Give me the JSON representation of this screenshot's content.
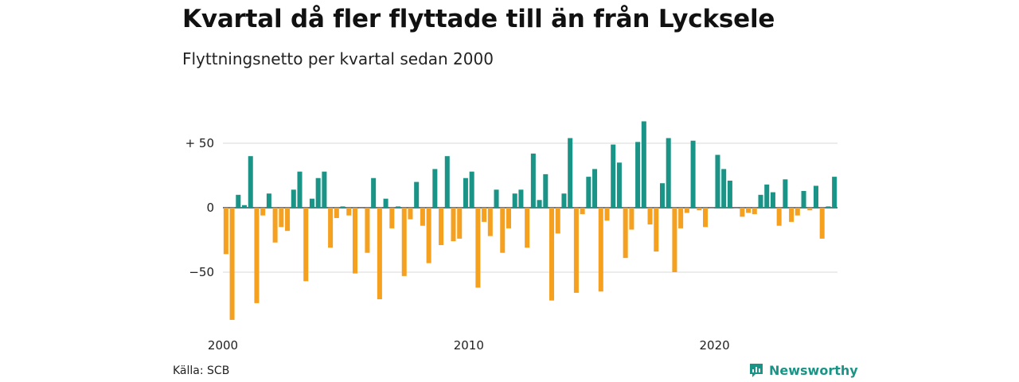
{
  "title": "Kvartal då fler flyttade till än från Lycksele",
  "subtitle": "Flyttningsnetto per kvartal sedan 2000",
  "source": "Källa: SCB",
  "brand": "Newsworthy",
  "colors": {
    "positive": "#1a9486",
    "negative": "#f5a01f",
    "grid": "#d9d9d9",
    "zero": "#222222"
  },
  "chart_data": {
    "type": "bar",
    "title": "Kvartal då fler flyttade till än från Lycksele",
    "subtitle": "Flyttningsnetto per kvartal sedan 2000",
    "xlabel": "",
    "ylabel": "",
    "start": "2000 Q1",
    "x_ticks": [
      "2000",
      "2010",
      "2020"
    ],
    "y_ticks": [
      50,
      0,
      -50
    ],
    "y_tick_labels": [
      "+ 50",
      "0",
      "−50"
    ],
    "ylim": [
      -90,
      68
    ],
    "grid": true,
    "values": [
      -36,
      -87,
      10,
      2,
      40,
      -74,
      -6,
      11,
      -27,
      -15,
      -18,
      14,
      28,
      -57,
      7,
      23,
      28,
      -31,
      -8,
      1,
      -6,
      -51,
      0,
      -35,
      23,
      -71,
      7,
      -16,
      1,
      -53,
      -9,
      20,
      -14,
      -43,
      30,
      -29,
      40,
      -26,
      -24,
      23,
      28,
      -62,
      -11,
      -22,
      14,
      -35,
      -16,
      11,
      14,
      -31,
      42,
      6,
      26,
      -72,
      -20,
      11,
      54,
      -66,
      -5,
      24,
      30,
      -65,
      -10,
      49,
      35,
      -39,
      -17,
      51,
      67,
      -13,
      -34,
      19,
      54,
      -50,
      -16,
      -4,
      52,
      -2,
      -15,
      0,
      41,
      30,
      21,
      0,
      -7,
      -4,
      -5,
      10,
      18,
      12,
      -14,
      22,
      -11,
      -6,
      13,
      -2,
      17,
      -24,
      1,
      24
    ]
  }
}
